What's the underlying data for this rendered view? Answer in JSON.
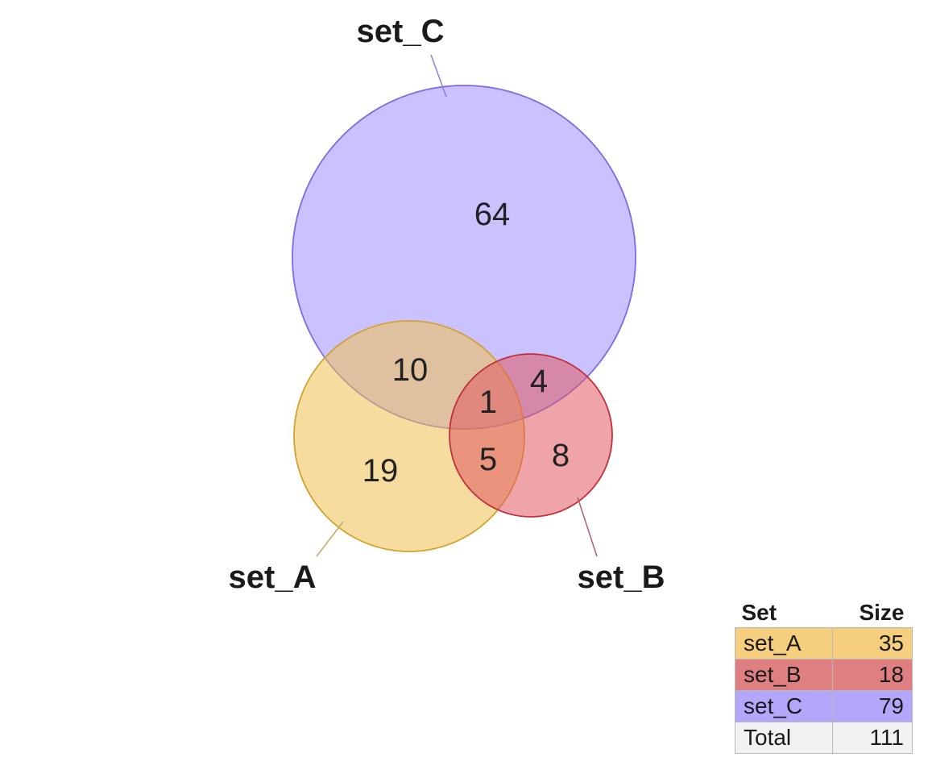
{
  "chart_data": {
    "type": "venn",
    "sets": [
      {
        "name": "set_A",
        "size": 35,
        "color": "#F0C050"
      },
      {
        "name": "set_B",
        "size": 18,
        "color": "#E05A60"
      },
      {
        "name": "set_C",
        "size": 79,
        "color": "#9F8FFF"
      }
    ],
    "regions": [
      {
        "sets": [
          "set_C"
        ],
        "count": 64
      },
      {
        "sets": [
          "set_A",
          "set_C"
        ],
        "count": 10
      },
      {
        "sets": [
          "set_B",
          "set_C"
        ],
        "count": 4
      },
      {
        "sets": [
          "set_A",
          "set_B",
          "set_C"
        ],
        "count": 1
      },
      {
        "sets": [
          "set_A",
          "set_B"
        ],
        "count": 5
      },
      {
        "sets": [
          "set_A"
        ],
        "count": 19
      },
      {
        "sets": [
          "set_B"
        ],
        "count": 8
      }
    ]
  },
  "legend": {
    "headers": {
      "set": "Set",
      "size": "Size"
    },
    "rows": [
      {
        "name": "set_A",
        "size": "35"
      },
      {
        "name": "set_B",
        "size": "18"
      },
      {
        "name": "set_C",
        "size": "79"
      }
    ],
    "total": {
      "name": "Total",
      "size": "111"
    }
  }
}
